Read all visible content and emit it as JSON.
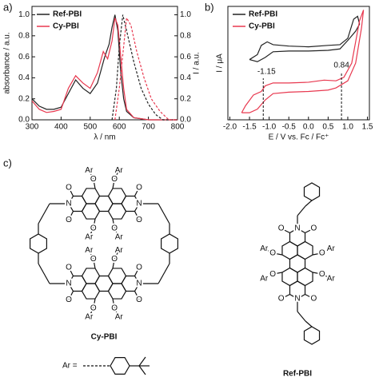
{
  "chart_data": [
    {
      "type": "line",
      "panel_label": "a)",
      "xlabel": "λ / nm",
      "ylabel": "absorbance / a.u.",
      "y2label": "I / a.u.",
      "xlim": [
        300,
        800
      ],
      "xticks": [
        300,
        400,
        500,
        600,
        700,
        800
      ],
      "ylim": [
        0,
        1.08
      ],
      "yticks": [
        {
          "value": 0,
          "label": "0.0"
        },
        {
          "value": 0.2,
          "label": "0.2"
        },
        {
          "value": 0.4,
          "label": "0.4"
        },
        {
          "value": 0.6,
          "label": "0.6"
        },
        {
          "value": 0.8,
          "label": "0.8"
        },
        {
          "value": 1,
          "label": "1.0"
        }
      ],
      "y2lim": [
        0,
        1.08
      ],
      "y2ticks": [
        {
          "value": 0,
          "label": "0.0"
        },
        {
          "value": 0.2,
          "label": "0.2"
        },
        {
          "value": 0.4,
          "label": "0.4"
        },
        {
          "value": 0.6,
          "label": "0.6"
        },
        {
          "value": 0.8,
          "label": "0.8"
        },
        {
          "value": 1,
          "label": "1.0"
        }
      ],
      "legend": "upper left",
      "series": [
        {
          "name": "Ref-PBI",
          "color": "#222222",
          "x": [
            300,
            325,
            350,
            375,
            400,
            425,
            450,
            475,
            500,
            525,
            550,
            565,
            575,
            585,
            595,
            605,
            615,
            625,
            650,
            700,
            800
          ],
          "values": [
            0.2,
            0.13,
            0.1,
            0.1,
            0.12,
            0.25,
            0.38,
            0.3,
            0.25,
            0.35,
            0.6,
            0.72,
            0.88,
            1.0,
            0.85,
            0.45,
            0.2,
            0.08,
            0.02,
            0,
            0
          ]
        },
        {
          "name": "Cy-PBI",
          "color": "#e8384f",
          "x": [
            300,
            325,
            350,
            375,
            400,
            425,
            450,
            475,
            500,
            525,
            545,
            560,
            575,
            585,
            595,
            605,
            615,
            625,
            650,
            700,
            800
          ],
          "values": [
            0.18,
            0.1,
            0.07,
            0.08,
            0.1,
            0.3,
            0.42,
            0.35,
            0.3,
            0.45,
            0.65,
            0.58,
            0.75,
            0.97,
            0.9,
            0.6,
            0.3,
            0.1,
            0.02,
            0,
            0
          ]
        },
        {
          "color": "#222222",
          "dash": true,
          "axis": "y2",
          "x": [
            575,
            590,
            600,
            612,
            625,
            650,
            675,
            700,
            725,
            750,
            800
          ],
          "values": [
            0,
            0.3,
            0.7,
            1.0,
            0.85,
            0.55,
            0.3,
            0.15,
            0.05,
            0,
            0
          ]
        },
        {
          "color": "#e8384f",
          "dash": true,
          "axis": "y2",
          "x": [
            585,
            600,
            615,
            625,
            640,
            660,
            685,
            710,
            740,
            770,
            800
          ],
          "values": [
            0,
            0.3,
            0.7,
            0.97,
            0.9,
            0.65,
            0.4,
            0.2,
            0.08,
            0,
            0
          ]
        }
      ]
    },
    {
      "type": "line",
      "panel_label": "b)",
      "xlabel": "E / V vs. Fc / Fc⁺",
      "ylabel": "I / μA",
      "xlim": [
        -2.05,
        1.55
      ],
      "xticks": [
        {
          "value": -2,
          "label": "-2.0"
        },
        {
          "value": -1.5,
          "label": "-1.5"
        },
        {
          "value": -1,
          "label": "-1.0"
        },
        {
          "value": -0.5,
          "label": "-0.5"
        },
        {
          "value": 0,
          "label": "0.0"
        },
        {
          "value": 0.5,
          "label": "0.5"
        },
        {
          "value": 1,
          "label": "1.0"
        },
        {
          "value": 1.5,
          "label": "1.5"
        }
      ],
      "ylim": [
        -6,
        10
      ],
      "legend": "upper left",
      "annotations": [
        {
          "x": -1.15,
          "label": "-1.15"
        },
        {
          "x": 0.84,
          "label": "0.84"
        }
      ],
      "series": [
        {
          "name": "Ref-PBI",
          "color": "#222222",
          "x": [
            -1.5,
            -1.3,
            -1.2,
            -1.05,
            -0.9,
            -0.5,
            0,
            0.5,
            0.8,
            1.0,
            1.15,
            1.25,
            1.3,
            1.2,
            1.0,
            0.8,
            0.5,
            0,
            -0.5,
            -0.9,
            -1.1,
            -1.3,
            -1.5
          ],
          "values": [
            2.5,
            3.2,
            4.5,
            5.0,
            4.6,
            4.4,
            4.3,
            4.5,
            4.6,
            5.5,
            8.2,
            8.6,
            7.5,
            6.5,
            5.2,
            4.0,
            3.8,
            3.7,
            3.7,
            3.6,
            2.8,
            2.2,
            2.5
          ]
        },
        {
          "name": "Cy-PBI",
          "color": "#e8384f",
          "x": [
            -1.7,
            -1.6,
            -1.4,
            -1.2,
            -1.1,
            -0.9,
            -0.5,
            0,
            0.4,
            0.7,
            0.9,
            1.1,
            1.2,
            1.3,
            1.4,
            1.35,
            1.2,
            1.0,
            0.7,
            0.5,
            0,
            -0.5,
            -0.9,
            -1.1,
            -1.3,
            -1.5,
            -1.7
          ],
          "values": [
            -5,
            -4,
            -2.5,
            -2,
            -1.2,
            -0.8,
            -0.8,
            -0.7,
            -0.4,
            -0.5,
            0,
            2,
            5,
            8,
            9.5,
            7,
            2,
            -0.5,
            -1.5,
            -1.8,
            -2,
            -2.1,
            -2.3,
            -3.2,
            -4.5,
            -5,
            -5
          ]
        }
      ]
    }
  ],
  "structures": {
    "panel_label": "c)",
    "cy_pbi": {
      "name": "Cy-PBI",
      "cores": [
        [
          "N",
          "N",
          "O",
          "O",
          "O",
          "O",
          "O",
          "O",
          "O",
          "O",
          "Ar",
          "Ar",
          "Ar",
          "Ar"
        ],
        [
          "N",
          "N",
          "O",
          "O",
          "O",
          "O",
          "O",
          "O",
          "O",
          "O",
          "Ar",
          "Ar",
          "Ar",
          "Ar"
        ]
      ]
    },
    "ref_pbi": {
      "name": "Ref-PBI",
      "atoms": [
        "N",
        "N",
        "O",
        "O",
        "O",
        "O",
        "O",
        "O",
        "O",
        "O",
        "Ar",
        "Ar",
        "Ar",
        "Ar"
      ]
    },
    "ar_definition": "Ar ="
  }
}
